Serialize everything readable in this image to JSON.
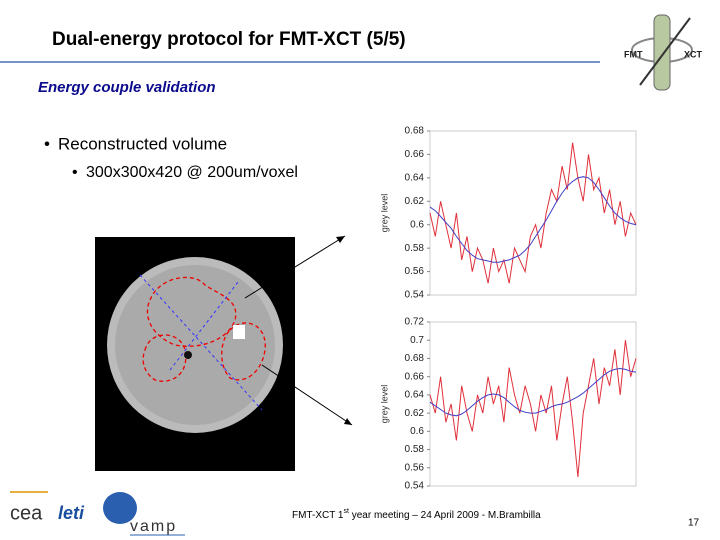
{
  "header": {
    "title": "Dual-energy protocol for FMT-XCT (5/5)",
    "subtitle": "Energy couple validation"
  },
  "bullets": [
    {
      "text": "Reconstructed volume",
      "sub": [
        "300x300x420 @ 200um/voxel"
      ]
    }
  ],
  "logos": {
    "fmt": "FMT",
    "xct": "XCT",
    "cea": "cea",
    "leti": "leti",
    "vamp": "vamp"
  },
  "footer": {
    "before": "FMT-XCT 1",
    "sup": "st",
    "after": " year meeting – 24 April 2009 - M.Brambilla",
    "page": "17"
  },
  "chart_data": [
    {
      "type": "line",
      "ylabel": "grey level",
      "ylim": [
        0.54,
        0.68
      ],
      "yticks": [
        0.54,
        0.56,
        0.58,
        0.6,
        0.62,
        0.64,
        0.66,
        0.68
      ],
      "series": [
        {
          "color": "#e0303a",
          "values": [
            0.61,
            0.59,
            0.62,
            0.6,
            0.58,
            0.61,
            0.57,
            0.59,
            0.56,
            0.58,
            0.57,
            0.55,
            0.58,
            0.56,
            0.57,
            0.55,
            0.58,
            0.57,
            0.56,
            0.59,
            0.6,
            0.58,
            0.61,
            0.63,
            0.62,
            0.65,
            0.63,
            0.67,
            0.64,
            0.62,
            0.66,
            0.63,
            0.64,
            0.61,
            0.63,
            0.6,
            0.62,
            0.59,
            0.61,
            0.6
          ]
        },
        {
          "color": "#4040c8",
          "values": [
            0.615,
            0.612,
            0.607,
            0.602,
            0.597,
            0.59,
            0.584,
            0.578,
            0.574,
            0.571,
            0.57,
            0.569,
            0.568,
            0.568,
            0.569,
            0.57,
            0.572,
            0.574,
            0.578,
            0.583,
            0.59,
            0.597,
            0.604,
            0.612,
            0.62,
            0.627,
            0.633,
            0.637,
            0.64,
            0.641,
            0.64,
            0.636,
            0.63,
            0.623,
            0.616,
            0.61,
            0.606,
            0.603,
            0.601,
            0.6
          ]
        }
      ]
    },
    {
      "type": "line",
      "ylabel": "grey level",
      "ylim": [
        0.54,
        0.72
      ],
      "yticks": [
        0.54,
        0.56,
        0.58,
        0.6,
        0.62,
        0.64,
        0.66,
        0.68,
        0.7,
        0.72
      ],
      "series": [
        {
          "color": "#e0303a",
          "values": [
            0.64,
            0.62,
            0.66,
            0.61,
            0.63,
            0.59,
            0.65,
            0.62,
            0.6,
            0.64,
            0.62,
            0.66,
            0.63,
            0.65,
            0.61,
            0.67,
            0.64,
            0.62,
            0.65,
            0.63,
            0.6,
            0.64,
            0.62,
            0.65,
            0.59,
            0.63,
            0.66,
            0.61,
            0.55,
            0.62,
            0.65,
            0.68,
            0.63,
            0.67,
            0.65,
            0.69,
            0.64,
            0.7,
            0.66,
            0.68
          ]
        },
        {
          "color": "#4040c8",
          "values": [
            0.632,
            0.628,
            0.624,
            0.62,
            0.618,
            0.617,
            0.619,
            0.623,
            0.628,
            0.633,
            0.637,
            0.64,
            0.641,
            0.64,
            0.637,
            0.632,
            0.627,
            0.623,
            0.621,
            0.62,
            0.62,
            0.622,
            0.624,
            0.627,
            0.629,
            0.63,
            0.632,
            0.635,
            0.638,
            0.642,
            0.647,
            0.652,
            0.657,
            0.662,
            0.666,
            0.668,
            0.669,
            0.668,
            0.666,
            0.665
          ]
        }
      ]
    }
  ]
}
